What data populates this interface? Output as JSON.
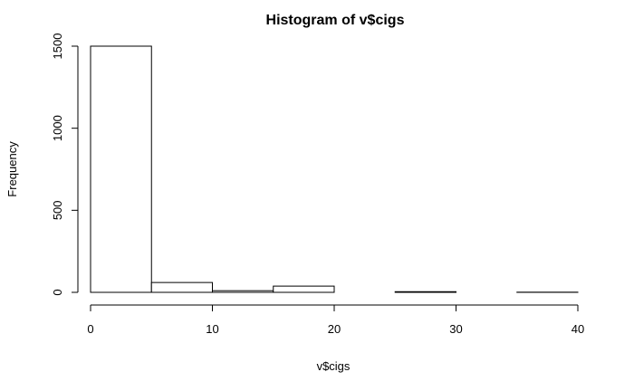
{
  "chart_data": {
    "type": "bar",
    "title": "Histogram of v$cigs",
    "xlabel": "v$cigs",
    "ylabel": "Frequency",
    "bins": [
      {
        "start": 0,
        "end": 5,
        "count": 1500
      },
      {
        "start": 5,
        "end": 10,
        "count": 60
      },
      {
        "start": 10,
        "end": 15,
        "count": 10
      },
      {
        "start": 15,
        "end": 20,
        "count": 38
      },
      {
        "start": 20,
        "end": 25,
        "count": 0
      },
      {
        "start": 25,
        "end": 30,
        "count": 4
      },
      {
        "start": 30,
        "end": 35,
        "count": 0
      },
      {
        "start": 35,
        "end": 40,
        "count": 1
      }
    ],
    "xlim": [
      0,
      40
    ],
    "ylim": [
      0,
      1500
    ],
    "xticks": [
      "0",
      "10",
      "20",
      "30",
      "40"
    ],
    "yticks": [
      "0",
      "500",
      "1000",
      "1500"
    ],
    "grid": false
  }
}
